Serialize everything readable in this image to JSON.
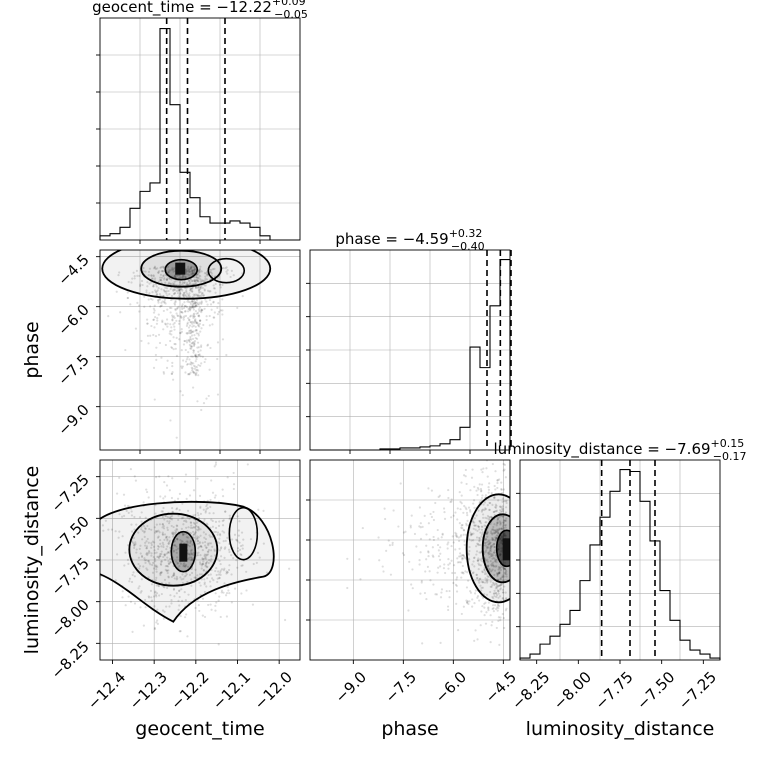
{
  "figure": {
    "type": "corner_plot",
    "parameters": [
      "geocent_time",
      "phase",
      "luminosity_distance"
    ]
  },
  "chart_data": [
    {
      "type": "histogram",
      "panel": "geocent_time-marginal",
      "title": {
        "label": "geocent_time",
        "value": "−12.22",
        "plus": "+0.09",
        "minus": "−0.05"
      },
      "xlim": [
        -12.43,
        -11.95
      ],
      "bin_edges": [
        -12.43,
        -12.406,
        -12.382,
        -12.358,
        -12.334,
        -12.31,
        -12.286,
        -12.262,
        -12.238,
        -12.214,
        -12.19,
        -12.166,
        -12.142,
        -12.118,
        -12.094,
        -12.07,
        -12.046,
        -12.022,
        -11.998,
        -11.974,
        -11.95
      ],
      "counts": [
        2,
        3,
        6,
        15,
        23,
        27,
        100,
        64,
        32,
        20,
        11,
        8,
        8,
        9,
        8,
        6,
        2,
        0,
        0,
        0
      ],
      "quantile_lines": [
        -12.27,
        -12.22,
        -12.13
      ]
    },
    {
      "type": "scatter_contour",
      "panel": "phase-vs-geocent_time",
      "xlim": [
        -12.43,
        -11.95
      ],
      "ylim": [
        -10.3,
        -4.3
      ],
      "ylabel": "phase",
      "ytick_labels": [
        "−4.5",
        "−6.0",
        "−7.5",
        "−9.0"
      ],
      "yticks": [
        -4.5,
        -6.0,
        -7.5,
        -9.0
      ],
      "density_peak": [
        -12.235,
        -4.8
      ]
    },
    {
      "type": "histogram",
      "panel": "phase-marginal",
      "title": {
        "label": "phase",
        "value": "−4.59",
        "plus": "+0.32",
        "minus": "−0.40"
      },
      "xlim": [
        -10.3,
        -4.3
      ],
      "bin_edges": [
        -10.3,
        -10.0,
        -9.7,
        -9.4,
        -9.1,
        -8.8,
        -8.5,
        -8.2,
        -7.9,
        -7.6,
        -7.3,
        -7.0,
        -6.7,
        -6.4,
        -6.1,
        -5.8,
        -5.5,
        -5.2,
        -4.9,
        -4.6,
        -4.3
      ],
      "counts": [
        0,
        0,
        0,
        0,
        0,
        0,
        0,
        1,
        1,
        2,
        2,
        3,
        4,
        6,
        10,
        22,
        100,
        80,
        140,
        185
      ],
      "quantile_lines": [
        -4.99,
        -4.59,
        -4.27
      ]
    },
    {
      "type": "scatter_contour",
      "panel": "luminosity_distance-vs-geocent_time",
      "xlim": [
        -12.43,
        -11.95
      ],
      "ylim": [
        -8.35,
        -7.15
      ],
      "xlabel": "geocent_time",
      "ylabel": "luminosity_distance",
      "xtick_labels": [
        "−12.4",
        "−12.3",
        "−12.2",
        "−12.1",
        "−12.0"
      ],
      "xticks": [
        -12.4,
        -12.3,
        -12.2,
        -12.1,
        -12.0
      ],
      "ytick_labels": [
        "−7.25",
        "−7.50",
        "−7.75",
        "−8.00",
        "−8.25"
      ],
      "yticks": [
        -7.25,
        -7.5,
        -7.75,
        -8.0,
        -8.25
      ],
      "density_peak": [
        -12.23,
        -7.7
      ]
    },
    {
      "type": "scatter_contour",
      "panel": "luminosity_distance-vs-phase",
      "xlim": [
        -10.3,
        -4.3
      ],
      "ylim": [
        -8.35,
        -7.15
      ],
      "xlabel": "phase",
      "xtick_labels": [
        "−9.0",
        "−7.5",
        "−6.0",
        "−4.5"
      ],
      "xticks": [
        -9.0,
        -7.5,
        -6.0,
        -4.5
      ],
      "density_peak": [
        -4.4,
        -7.68
      ]
    },
    {
      "type": "histogram",
      "panel": "luminosity_distance-marginal",
      "title": {
        "label": "luminosity_distance",
        "value": "−7.69",
        "plus": "+0.15",
        "minus": "−0.17"
      },
      "xlim": [
        -8.35,
        -7.15
      ],
      "xlabel": "luminosity_distance",
      "xtick_labels": [
        "−8.25",
        "−8.00",
        "−7.75",
        "−7.50",
        "−7.25"
      ],
      "xticks": [
        -8.25,
        -8.0,
        -7.75,
        -7.5,
        -7.25
      ],
      "bin_edges": [
        -8.35,
        -8.29,
        -8.23,
        -8.17,
        -8.11,
        -8.05,
        -7.99,
        -7.93,
        -7.87,
        -7.81,
        -7.75,
        -7.69,
        -7.63,
        -7.57,
        -7.51,
        -7.45,
        -7.39,
        -7.33,
        -7.27,
        -7.21,
        -7.15
      ],
      "counts": [
        1,
        3,
        8,
        12,
        18,
        25,
        40,
        58,
        72,
        85,
        96,
        95,
        80,
        60,
        35,
        20,
        10,
        5,
        3,
        1
      ],
      "quantile_lines": [
        -7.86,
        -7.69,
        -7.54
      ]
    }
  ]
}
